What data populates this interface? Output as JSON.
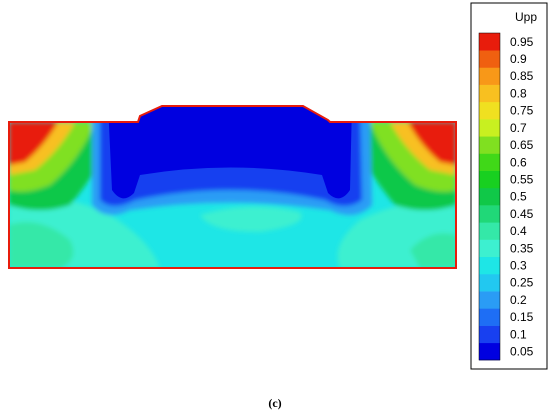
{
  "chart_data": {
    "type": "contour",
    "title": "Upp",
    "caption": "(c)",
    "levels": [
      0.05,
      0.1,
      0.15,
      0.2,
      0.25,
      0.3,
      0.35,
      0.4,
      0.45,
      0.5,
      0.55,
      0.6,
      0.65,
      0.7,
      0.75,
      0.8,
      0.85,
      0.9,
      0.95
    ],
    "colors": [
      "#0000e0",
      "#1840f0",
      "#1e6ef5",
      "#2a9cf5",
      "#22c8f0",
      "#1ee6e6",
      "#3df0d0",
      "#34e8a8",
      "#20d878",
      "#10c848",
      "#18d020",
      "#40d818",
      "#80e020",
      "#c8f020",
      "#f0e020",
      "#f8c020",
      "#f89818",
      "#f06010",
      "#e81c0c"
    ]
  }
}
